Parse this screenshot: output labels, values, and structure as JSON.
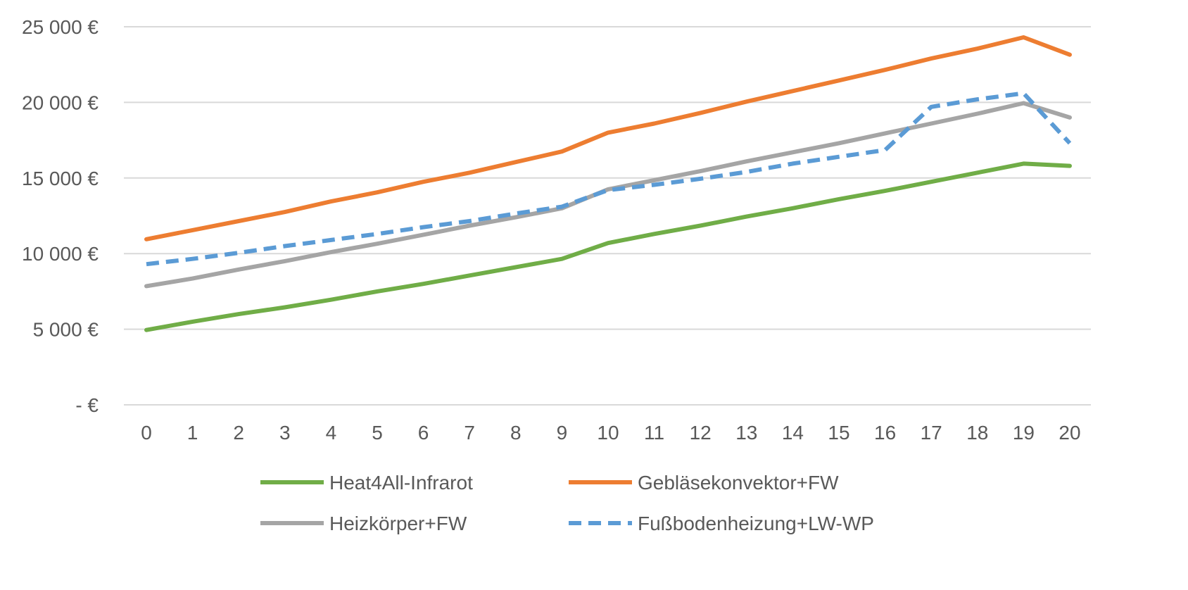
{
  "chart_data": {
    "type": "line",
    "title": "",
    "xlabel": "",
    "ylabel": "",
    "x": [
      "0",
      "1",
      "2",
      "3",
      "4",
      "5",
      "6",
      "7",
      "8",
      "9",
      "10",
      "11",
      "12",
      "13",
      "14",
      "15",
      "16",
      "17",
      "18",
      "19",
      "20"
    ],
    "ylim": [
      0,
      25000
    ],
    "y_ticks": [
      0,
      5000,
      10000,
      15000,
      20000,
      25000
    ],
    "y_tick_labels": [
      "-  €",
      "5 000 €",
      "10 000 €",
      "15 000 €",
      "20 000 €",
      "25 000 €"
    ],
    "grid": "horizontal",
    "legend_position": "bottom",
    "series": [
      {
        "name": "Heat4All-Infrarot",
        "color": "#70AD47",
        "dash": "solid",
        "values": [
          4950,
          5500,
          6000,
          6450,
          6950,
          7500,
          8000,
          8550,
          9100,
          9650,
          10700,
          11300,
          11850,
          12450,
          13000,
          13600,
          14150,
          14750,
          15350,
          15950,
          15800
        ]
      },
      {
        "name": "Gebläsekonvektor+FW",
        "color": "#ED7D31",
        "dash": "solid",
        "values": [
          10950,
          11550,
          12150,
          12750,
          13450,
          14050,
          14750,
          15350,
          16050,
          16750,
          18000,
          18600,
          19300,
          20050,
          20750,
          21450,
          22150,
          22900,
          23550,
          24300,
          23150
        ]
      },
      {
        "name": "Heizkörper+FW",
        "color": "#A5A5A5",
        "dash": "solid",
        "values": [
          7850,
          8350,
          8950,
          9500,
          10100,
          10650,
          11250,
          11850,
          12400,
          13000,
          14250,
          14850,
          15450,
          16100,
          16700,
          17300,
          17950,
          18600,
          19250,
          19950,
          19000
        ]
      },
      {
        "name": "Fußbodenheizung+LW-WP",
        "color": "#5B9BD5",
        "dash": "dashed",
        "values": [
          9300,
          9650,
          10050,
          10500,
          10900,
          11300,
          11750,
          12150,
          12650,
          13100,
          14200,
          14550,
          14950,
          15400,
          15950,
          16400,
          16850,
          19700,
          20200,
          20600,
          17300
        ]
      }
    ]
  }
}
